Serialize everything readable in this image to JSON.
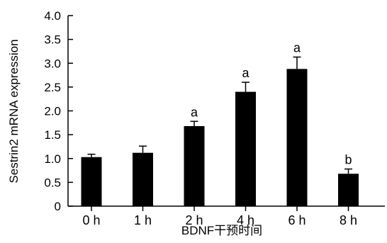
{
  "chart_data": {
    "type": "bar",
    "title": "",
    "xlabel": "BDNF干预时间",
    "ylabel": "Sestrin2 mRNA expression",
    "categories": [
      "0 h",
      "1 h",
      "2 h",
      "4 h",
      "6 h",
      "8 h"
    ],
    "values": [
      1.03,
      1.12,
      1.68,
      2.4,
      2.88,
      0.68
    ],
    "errors": [
      0.06,
      0.14,
      0.1,
      0.2,
      0.25,
      0.1
    ],
    "annotations": [
      "",
      "",
      "a",
      "a",
      "a",
      "b"
    ],
    "ylim": [
      0,
      4.0
    ],
    "yticks": [
      "0",
      "0.5",
      "1.0",
      "1.5",
      "2.0",
      "2.5",
      "3.0",
      "3.5",
      "4.0"
    ],
    "grid": false,
    "bar_color": "#000000"
  }
}
